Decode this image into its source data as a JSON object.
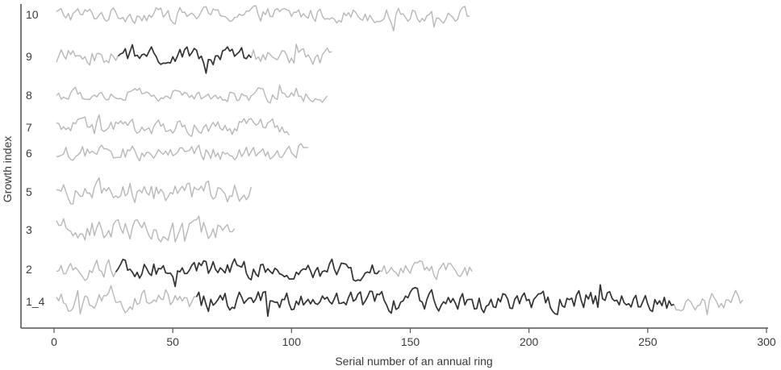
{
  "chart_data": {
    "type": "line",
    "title": "",
    "xlabel": "Serial number of an annual ring",
    "ylabel": "Growth index",
    "xlim": [
      0,
      300
    ],
    "xticks": [
      0,
      50,
      100,
      150,
      200,
      250,
      300
    ],
    "grid": false,
    "legend": "none",
    "colors": {
      "full": "#b8b8b8",
      "highlight": "#333333",
      "axis": "#555555",
      "text": "#3a3a3a"
    },
    "series": [
      {
        "name": "10",
        "start": 1,
        "end": 175,
        "highlight": null
      },
      {
        "name": "9",
        "start": 1,
        "end": 117,
        "highlight": [
          27,
          83
        ]
      },
      {
        "name": "8",
        "start": 1,
        "end": 115,
        "highlight": null
      },
      {
        "name": "7",
        "start": 1,
        "end": 99,
        "highlight": null
      },
      {
        "name": "6",
        "start": 1,
        "end": 107,
        "highlight": null
      },
      {
        "name": "5",
        "start": 1,
        "end": 83,
        "highlight": null
      },
      {
        "name": "3",
        "start": 1,
        "end": 76,
        "highlight": null
      },
      {
        "name": "2",
        "start": 1,
        "end": 176,
        "highlight": [
          26,
          137
        ]
      },
      {
        "name": "1_4",
        "start": 1,
        "end": 290,
        "highlight": [
          60,
          261
        ]
      }
    ]
  }
}
